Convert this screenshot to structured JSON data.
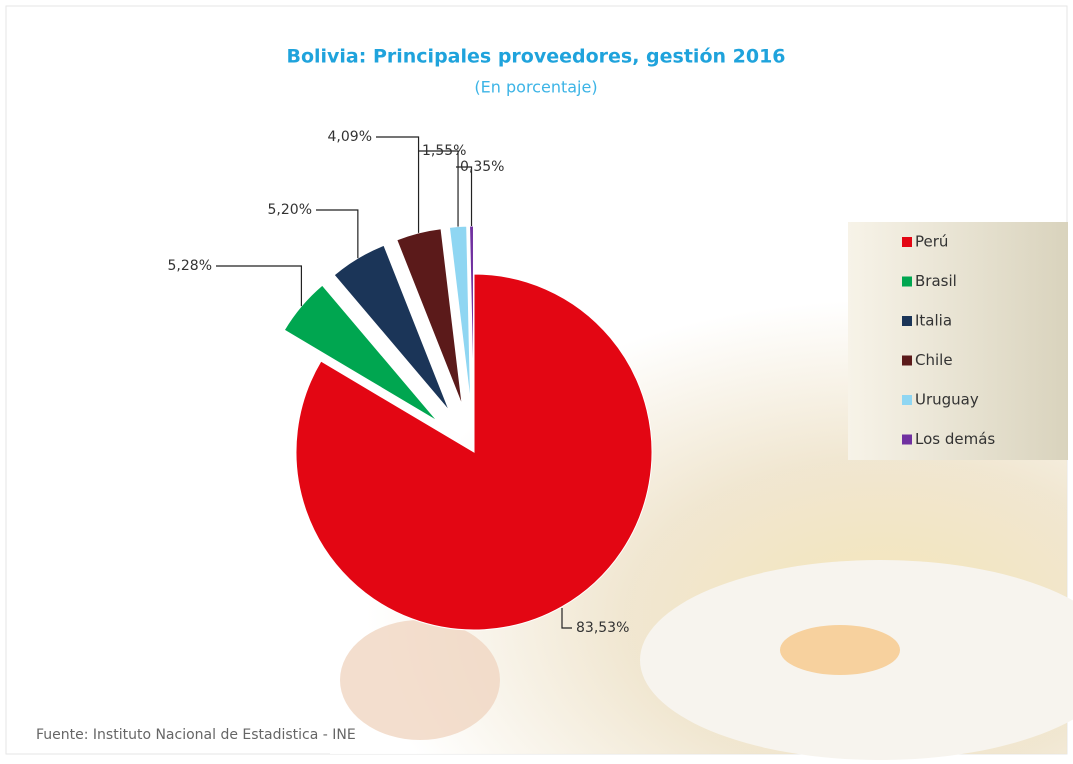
{
  "chart_data": {
    "type": "pie",
    "title": "Bolivia: Principales proveedores, gestión 2016",
    "subtitle": "(En porcentaje)",
    "source": "Fuente: Instituto Nacional de Estadistica - INE",
    "categories": [
      "Perú",
      "Brasil",
      "Italia",
      "Chile",
      "Uruguay",
      "Los demás"
    ],
    "values": [
      83.53,
      5.28,
      5.2,
      4.09,
      1.55,
      0.35
    ],
    "value_labels": [
      "83,53%",
      "5,28%",
      "5,20%",
      "4,09%",
      "1,55%",
      "0,35%"
    ],
    "colors": [
      "#e30613",
      "#00a650",
      "#1b3558",
      "#5b1a1a",
      "#8fd6f2",
      "#7030a0"
    ],
    "legend": "right"
  }
}
